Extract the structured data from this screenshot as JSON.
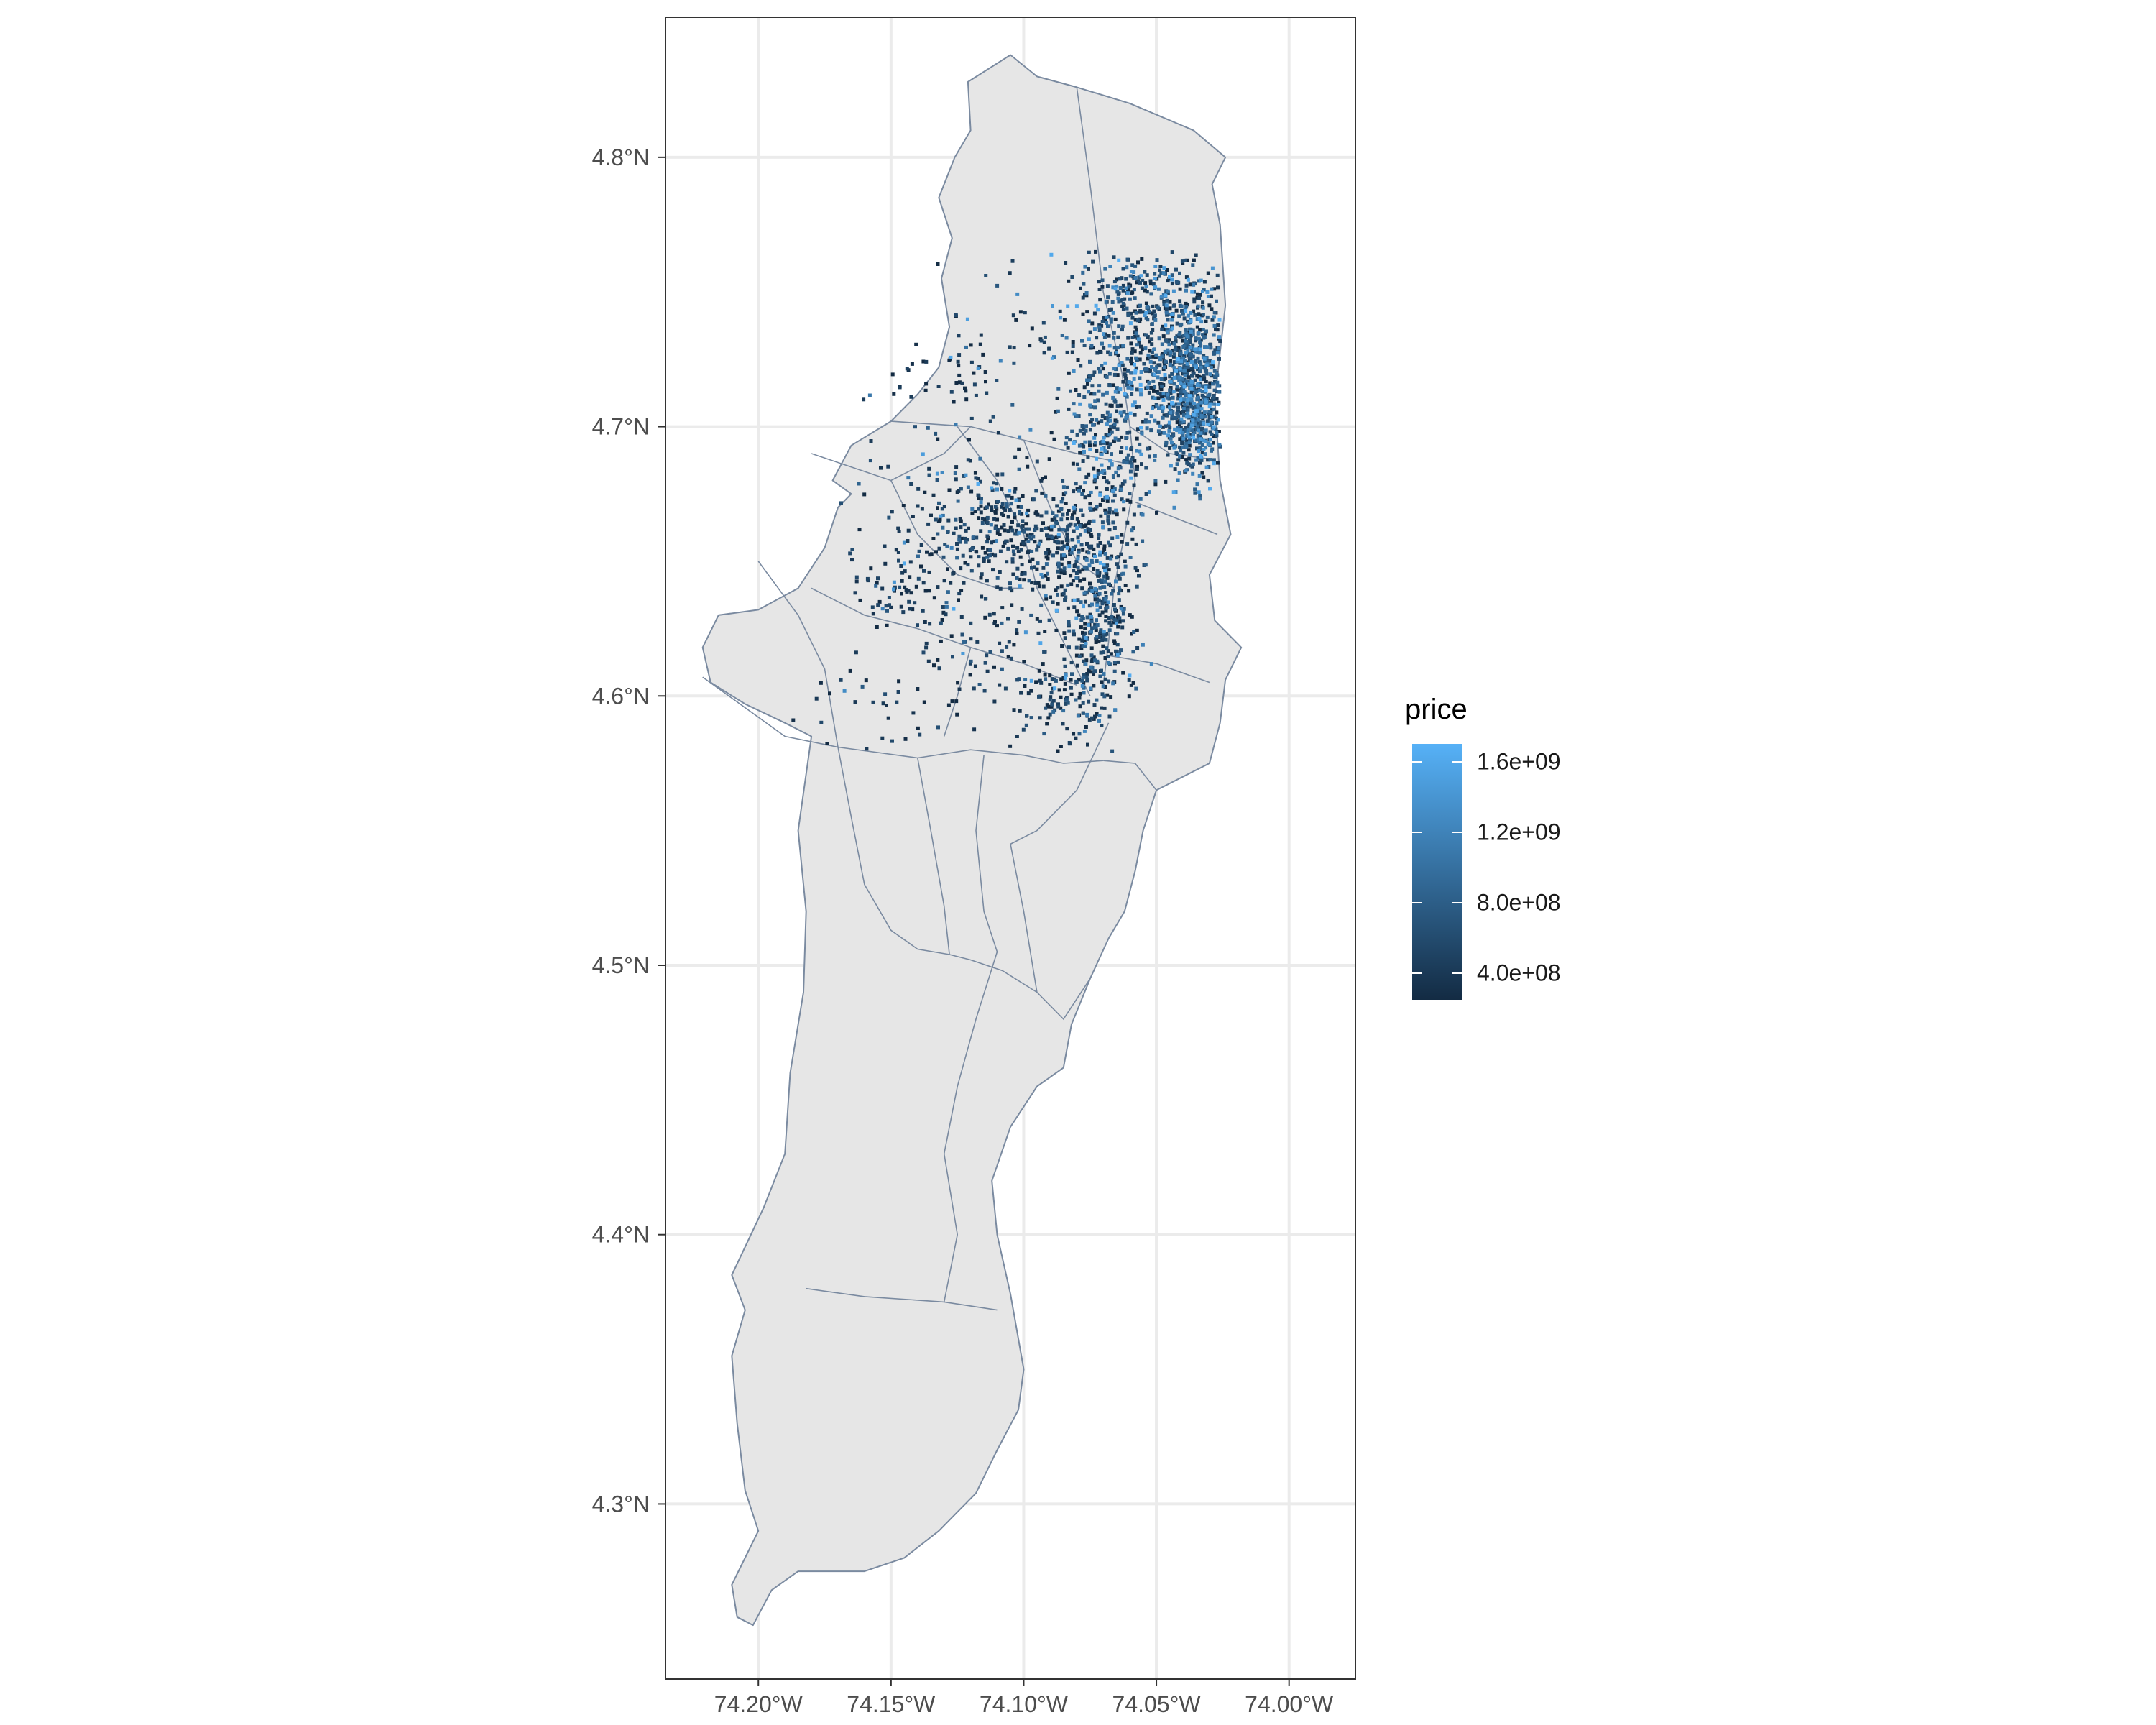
{
  "chart_data": {
    "type": "scatter",
    "title": "",
    "xlabel": "",
    "ylabel": "",
    "xlim": [
      -74.235,
      -73.975
    ],
    "ylim": [
      4.235,
      4.852
    ],
    "x_ticks": [
      {
        "value": -74.2,
        "label": "74.20°W"
      },
      {
        "value": -74.15,
        "label": "74.15°W"
      },
      {
        "value": -74.1,
        "label": "74.10°W"
      },
      {
        "value": -74.05,
        "label": "74.05°W"
      },
      {
        "value": -74.0,
        "label": "74.00°W"
      }
    ],
    "y_ticks": [
      {
        "value": 4.3,
        "label": "4.3°N"
      },
      {
        "value": 4.4,
        "label": "4.4°N"
      },
      {
        "value": 4.5,
        "label": "4.5°N"
      },
      {
        "value": 4.6,
        "label": "4.6°N"
      },
      {
        "value": 4.7,
        "label": "4.7°N"
      },
      {
        "value": 4.8,
        "label": "4.8°N"
      }
    ],
    "grid": true,
    "basemap": {
      "fill": "#e6e6e6",
      "stroke": "#7a8aa0",
      "outline": [
        [
          -74.121,
          4.828
        ],
        [
          -74.105,
          4.838
        ],
        [
          -74.095,
          4.83
        ],
        [
          -74.08,
          4.826
        ],
        [
          -74.06,
          4.82
        ],
        [
          -74.036,
          4.81
        ],
        [
          -74.024,
          4.8
        ],
        [
          -74.029,
          4.79
        ],
        [
          -74.026,
          4.775
        ],
        [
          -74.024,
          4.745
        ],
        [
          -74.028,
          4.71
        ],
        [
          -74.026,
          4.68
        ],
        [
          -74.022,
          4.66
        ],
        [
          -74.03,
          4.645
        ],
        [
          -74.028,
          4.628
        ],
        [
          -74.018,
          4.618
        ],
        [
          -74.024,
          4.606
        ],
        [
          -74.026,
          4.59
        ],
        [
          -74.03,
          4.575
        ],
        [
          -74.05,
          4.565
        ],
        [
          -74.055,
          4.55
        ],
        [
          -74.058,
          4.535
        ],
        [
          -74.062,
          4.52
        ],
        [
          -74.068,
          4.51
        ],
        [
          -74.075,
          4.495
        ],
        [
          -74.082,
          4.478
        ],
        [
          -74.085,
          4.462
        ],
        [
          -74.095,
          4.455
        ],
        [
          -74.105,
          4.44
        ],
        [
          -74.112,
          4.42
        ],
        [
          -74.11,
          4.4
        ],
        [
          -74.105,
          4.378
        ],
        [
          -74.1,
          4.35
        ],
        [
          -74.102,
          4.335
        ],
        [
          -74.11,
          4.32
        ],
        [
          -74.118,
          4.304
        ],
        [
          -74.132,
          4.29
        ],
        [
          -74.145,
          4.28
        ],
        [
          -74.16,
          4.275
        ],
        [
          -74.185,
          4.275
        ],
        [
          -74.195,
          4.268
        ],
        [
          -74.202,
          4.255
        ],
        [
          -74.208,
          4.258
        ],
        [
          -74.21,
          4.27
        ],
        [
          -74.2,
          4.29
        ],
        [
          -74.205,
          4.305
        ],
        [
          -74.208,
          4.33
        ],
        [
          -74.21,
          4.355
        ],
        [
          -74.205,
          4.372
        ],
        [
          -74.21,
          4.385
        ],
        [
          -74.198,
          4.41
        ],
        [
          -74.19,
          4.43
        ],
        [
          -74.188,
          4.46
        ],
        [
          -74.183,
          4.49
        ],
        [
          -74.182,
          4.52
        ],
        [
          -74.185,
          4.55
        ],
        [
          -74.18,
          4.585
        ],
        [
          -74.19,
          4.59
        ],
        [
          -74.205,
          4.597
        ],
        [
          -74.218,
          4.605
        ],
        [
          -74.221,
          4.618
        ],
        [
          -74.215,
          4.63
        ],
        [
          -74.2,
          4.632
        ],
        [
          -74.185,
          4.64
        ],
        [
          -74.175,
          4.655
        ],
        [
          -74.17,
          4.67
        ],
        [
          -74.165,
          4.675
        ],
        [
          -74.172,
          4.68
        ],
        [
          -74.165,
          4.693
        ],
        [
          -74.15,
          4.702
        ],
        [
          -74.14,
          4.712
        ],
        [
          -74.132,
          4.722
        ],
        [
          -74.128,
          4.737
        ],
        [
          -74.131,
          4.755
        ],
        [
          -74.127,
          4.77
        ],
        [
          -74.132,
          4.785
        ],
        [
          -74.126,
          4.8
        ],
        [
          -74.12,
          4.81
        ],
        [
          -74.121,
          4.828
        ]
      ],
      "boundaries": [
        [
          [
            -74.08,
            4.826
          ],
          [
            -74.075,
            4.79
          ],
          [
            -74.07,
            4.75
          ],
          [
            -74.063,
            4.72
          ],
          [
            -74.06,
            4.7
          ]
        ],
        [
          [
            -74.06,
            4.7
          ],
          [
            -74.058,
            4.68
          ],
          [
            -74.062,
            4.66
          ],
          [
            -74.066,
            4.64
          ],
          [
            -74.068,
            4.62
          ],
          [
            -74.07,
            4.604
          ]
        ],
        [
          [
            -74.06,
            4.7
          ],
          [
            -74.045,
            4.69
          ],
          [
            -74.03,
            4.688
          ]
        ],
        [
          [
            -74.058,
            4.672
          ],
          [
            -74.04,
            4.665
          ],
          [
            -74.027,
            4.66
          ]
        ],
        [
          [
            -74.068,
            4.615
          ],
          [
            -74.05,
            4.612
          ],
          [
            -74.03,
            4.605
          ]
        ],
        [
          [
            -74.221,
            4.607
          ],
          [
            -74.19,
            4.585
          ],
          [
            -74.17,
            4.581
          ],
          [
            -74.14,
            4.577
          ],
          [
            -74.12,
            4.58
          ],
          [
            -74.1,
            4.578
          ],
          [
            -74.085,
            4.575
          ],
          [
            -74.07,
            4.576
          ]
        ],
        [
          [
            -74.07,
            4.576
          ],
          [
            -74.058,
            4.575
          ],
          [
            -74.05,
            4.565
          ]
        ],
        [
          [
            -74.17,
            4.581
          ],
          [
            -74.165,
            4.555
          ],
          [
            -74.16,
            4.53
          ],
          [
            -74.15,
            4.513
          ],
          [
            -74.14,
            4.506
          ],
          [
            -74.128,
            4.504
          ]
        ],
        [
          [
            -74.14,
            4.577
          ],
          [
            -74.135,
            4.55
          ],
          [
            -74.13,
            4.522
          ],
          [
            -74.128,
            4.504
          ]
        ],
        [
          [
            -74.128,
            4.504
          ],
          [
            -74.12,
            4.502
          ],
          [
            -74.108,
            4.498
          ],
          [
            -74.095,
            4.49
          ]
        ],
        [
          [
            -74.115,
            4.578
          ],
          [
            -74.118,
            4.55
          ],
          [
            -74.115,
            4.52
          ],
          [
            -74.11,
            4.505
          ]
        ],
        [
          [
            -74.068,
            4.59
          ],
          [
            -74.08,
            4.565
          ],
          [
            -74.095,
            4.55
          ],
          [
            -74.105,
            4.545
          ]
        ],
        [
          [
            -74.105,
            4.545
          ],
          [
            -74.1,
            4.52
          ],
          [
            -74.095,
            4.49
          ]
        ],
        [
          [
            -74.095,
            4.49
          ],
          [
            -74.085,
            4.48
          ],
          [
            -74.075,
            4.495
          ]
        ],
        [
          [
            -74.11,
            4.505
          ],
          [
            -74.118,
            4.48
          ],
          [
            -74.125,
            4.455
          ],
          [
            -74.13,
            4.43
          ],
          [
            -74.125,
            4.4
          ],
          [
            -74.13,
            4.375
          ]
        ],
        [
          [
            -74.182,
            4.38
          ],
          [
            -74.16,
            4.377
          ],
          [
            -74.13,
            4.375
          ],
          [
            -74.11,
            4.372
          ]
        ],
        [
          [
            -74.18,
            4.69
          ],
          [
            -74.15,
            4.68
          ],
          [
            -74.13,
            4.69
          ],
          [
            -74.12,
            4.7
          ]
        ],
        [
          [
            -74.15,
            4.702
          ],
          [
            -74.12,
            4.7
          ],
          [
            -74.1,
            4.695
          ],
          [
            -74.08,
            4.69
          ],
          [
            -74.06,
            4.686
          ]
        ],
        [
          [
            -74.125,
            4.7
          ],
          [
            -74.11,
            4.68
          ],
          [
            -74.1,
            4.66
          ],
          [
            -74.095,
            4.64
          ],
          [
            -74.085,
            4.62
          ],
          [
            -74.075,
            4.6
          ]
        ],
        [
          [
            -74.18,
            4.64
          ],
          [
            -74.16,
            4.63
          ],
          [
            -74.14,
            4.625
          ],
          [
            -74.12,
            4.618
          ],
          [
            -74.1,
            4.612
          ],
          [
            -74.08,
            4.604
          ]
        ],
        [
          [
            -74.2,
            4.65
          ],
          [
            -74.185,
            4.63
          ],
          [
            -74.175,
            4.61
          ],
          [
            -74.17,
            4.581
          ]
        ],
        [
          [
            -74.12,
            4.618
          ],
          [
            -74.125,
            4.6
          ],
          [
            -74.13,
            4.585
          ]
        ],
        [
          [
            -74.1,
            4.695
          ],
          [
            -74.09,
            4.67
          ],
          [
            -74.08,
            4.65
          ],
          [
            -74.066,
            4.64
          ]
        ],
        [
          [
            -74.15,
            4.68
          ],
          [
            -74.14,
            4.66
          ],
          [
            -74.125,
            4.645
          ],
          [
            -74.11,
            4.64
          ],
          [
            -74.1,
            4.64
          ]
        ]
      ]
    },
    "colorbar": {
      "title": "price",
      "low": "#132b43",
      "high": "#56b1f7",
      "range": [
        250000000,
        1700000000
      ],
      "ticks": [
        {
          "value": 1600000000,
          "label": "1.6e+09"
        },
        {
          "value": 1200000000,
          "label": "1.2e+09"
        },
        {
          "value": 800000000,
          "label": "8.0e+08"
        },
        {
          "value": 400000000,
          "label": "4.0e+08"
        }
      ]
    },
    "point_clusters": [
      {
        "center": [
          -74.038,
          4.722
        ],
        "spread": [
          0.008,
          0.012
        ],
        "count": 520,
        "price_mean": 700000000,
        "price_spread": 350000000
      },
      {
        "center": [
          -74.035,
          4.7
        ],
        "spread": [
          0.007,
          0.01
        ],
        "count": 380,
        "price_mean": 750000000,
        "price_spread": 400000000
      },
      {
        "center": [
          -74.06,
          4.73
        ],
        "spread": [
          0.01,
          0.02
        ],
        "count": 320,
        "price_mean": 650000000,
        "price_spread": 400000000
      },
      {
        "center": [
          -74.048,
          4.748
        ],
        "spread": [
          0.012,
          0.008
        ],
        "count": 180,
        "price_mean": 500000000,
        "price_spread": 250000000
      },
      {
        "center": [
          -74.068,
          4.695
        ],
        "spread": [
          0.008,
          0.015
        ],
        "count": 220,
        "price_mean": 700000000,
        "price_spread": 400000000
      },
      {
        "center": [
          -74.073,
          4.65
        ],
        "spread": [
          0.007,
          0.015
        ],
        "count": 260,
        "price_mean": 550000000,
        "price_spread": 300000000
      },
      {
        "center": [
          -74.072,
          4.62
        ],
        "spread": [
          0.006,
          0.012
        ],
        "count": 160,
        "price_mean": 500000000,
        "price_spread": 300000000
      },
      {
        "center": [
          -74.08,
          4.6
        ],
        "spread": [
          0.008,
          0.008
        ],
        "count": 110,
        "price_mean": 450000000,
        "price_spread": 300000000
      },
      {
        "center": [
          -74.115,
          4.665
        ],
        "spread": [
          0.014,
          0.01
        ],
        "count": 210,
        "price_mean": 450000000,
        "price_spread": 250000000
      },
      {
        "center": [
          -74.092,
          4.655
        ],
        "spread": [
          0.012,
          0.012
        ],
        "count": 200,
        "price_mean": 450000000,
        "price_spread": 250000000
      },
      {
        "center": [
          -74.145,
          4.64
        ],
        "spread": [
          0.012,
          0.01
        ],
        "count": 90,
        "price_mean": 400000000,
        "price_spread": 200000000
      },
      {
        "center": [
          -74.11,
          4.615
        ],
        "spread": [
          0.02,
          0.015
        ],
        "count": 140,
        "price_mean": 380000000,
        "price_spread": 200000000
      },
      {
        "center": [
          -74.13,
          4.72
        ],
        "spread": [
          0.01,
          0.006
        ],
        "count": 30,
        "price_mean": 350000000,
        "price_spread": 150000000
      },
      {
        "center": [
          -74.095,
          4.735
        ],
        "spread": [
          0.018,
          0.012
        ],
        "count": 60,
        "price_mean": 450000000,
        "price_spread": 250000000
      },
      {
        "center": [
          -74.12,
          4.69
        ],
        "spread": [
          0.025,
          0.015
        ],
        "count": 60,
        "price_mean": 500000000,
        "price_spread": 400000000
      },
      {
        "center": [
          -74.16,
          4.595
        ],
        "spread": [
          0.015,
          0.008
        ],
        "count": 25,
        "price_mean": 400000000,
        "price_spread": 200000000
      }
    ]
  }
}
